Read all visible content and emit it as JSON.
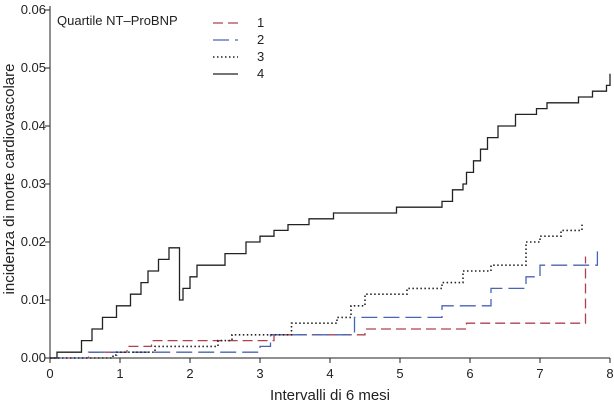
{
  "chart_data": {
    "type": "line",
    "xlabel": "Intervalli di 6 mesi",
    "ylabel": "incidenza di morte cardiovascolare",
    "xlim": [
      0,
      8
    ],
    "ylim": [
      0,
      0.06
    ],
    "x_ticks": [
      "0",
      "1",
      "2",
      "3",
      "4",
      "5",
      "6",
      "7",
      "8"
    ],
    "y_ticks": [
      "0.00",
      "0.01",
      "0.02",
      "0.03",
      "0.04",
      "0.05",
      "0.06"
    ],
    "legend": {
      "title": "Quartile NT–ProBNP",
      "position": "top-left"
    },
    "grid": false,
    "series": [
      {
        "name": "1",
        "color": "#b04050",
        "dash": "dashed",
        "steps": [
          [
            0,
            0
          ],
          [
            0.55,
            0.001
          ],
          [
            1.1,
            0.002
          ],
          [
            1.45,
            0.003
          ],
          [
            3.05,
            0.003
          ],
          [
            3.2,
            0.004
          ],
          [
            4.4,
            0.004
          ],
          [
            4.5,
            0.005
          ],
          [
            5.85,
            0.005
          ],
          [
            5.95,
            0.006
          ],
          [
            7.6,
            0.006
          ],
          [
            7.65,
            0.0175
          ]
        ]
      },
      {
        "name": "2",
        "color": "#4a64b4",
        "dash": "longdash",
        "steps": [
          [
            0,
            0
          ],
          [
            0.55,
            0.001
          ],
          [
            1.5,
            0.001
          ],
          [
            3.0,
            0.002
          ],
          [
            3.15,
            0.004
          ],
          [
            4.3,
            0.004
          ],
          [
            4.35,
            0.007
          ],
          [
            5.5,
            0.007
          ],
          [
            5.6,
            0.009
          ],
          [
            6.1,
            0.009
          ],
          [
            6.3,
            0.012
          ],
          [
            6.8,
            0.014
          ],
          [
            7.0,
            0.016
          ],
          [
            7.8,
            0.016
          ],
          [
            7.82,
            0.0185
          ]
        ]
      },
      {
        "name": "3",
        "color": "#222222",
        "dash": "dotted",
        "steps": [
          [
            0,
            0
          ],
          [
            0.5,
            0
          ],
          [
            0.9,
            0.0005
          ],
          [
            0.95,
            0.001
          ],
          [
            1.5,
            0.002
          ],
          [
            2.4,
            0.003
          ],
          [
            2.6,
            0.004
          ],
          [
            3.3,
            0.004
          ],
          [
            3.45,
            0.006
          ],
          [
            4.1,
            0.007
          ],
          [
            4.3,
            0.009
          ],
          [
            4.5,
            0.011
          ],
          [
            5.1,
            0.012
          ],
          [
            5.6,
            0.013
          ],
          [
            5.9,
            0.015
          ],
          [
            6.3,
            0.016
          ],
          [
            6.8,
            0.02
          ],
          [
            7.0,
            0.021
          ],
          [
            7.3,
            0.022
          ],
          [
            7.6,
            0.023
          ]
        ]
      },
      {
        "name": "4",
        "color": "#222222",
        "dash": "solid",
        "steps": [
          [
            0,
            0
          ],
          [
            0.1,
            0.001
          ],
          [
            0.45,
            0.003
          ],
          [
            0.6,
            0.005
          ],
          [
            0.75,
            0.007
          ],
          [
            0.95,
            0.009
          ],
          [
            1.15,
            0.011
          ],
          [
            1.3,
            0.013
          ],
          [
            1.4,
            0.015
          ],
          [
            1.55,
            0.017
          ],
          [
            1.7,
            0.019
          ],
          [
            1.85,
            0.01
          ],
          [
            1.9,
            0.012
          ],
          [
            2.0,
            0.014
          ],
          [
            2.1,
            0.016
          ],
          [
            2.5,
            0.018
          ],
          [
            2.8,
            0.02
          ],
          [
            3.0,
            0.021
          ],
          [
            3.2,
            0.022
          ],
          [
            3.4,
            0.023
          ],
          [
            3.7,
            0.024
          ],
          [
            4.05,
            0.025
          ],
          [
            4.8,
            0.025
          ],
          [
            4.95,
            0.026
          ],
          [
            5.6,
            0.027
          ],
          [
            5.75,
            0.029
          ],
          [
            5.9,
            0.03
          ],
          [
            5.95,
            0.032
          ],
          [
            6.05,
            0.034
          ],
          [
            6.15,
            0.036
          ],
          [
            6.25,
            0.038
          ],
          [
            6.4,
            0.04
          ],
          [
            6.65,
            0.042
          ],
          [
            6.95,
            0.043
          ],
          [
            7.1,
            0.044
          ],
          [
            7.55,
            0.045
          ],
          [
            7.75,
            0.046
          ],
          [
            7.95,
            0.047
          ],
          [
            8.0,
            0.049
          ]
        ]
      }
    ]
  }
}
